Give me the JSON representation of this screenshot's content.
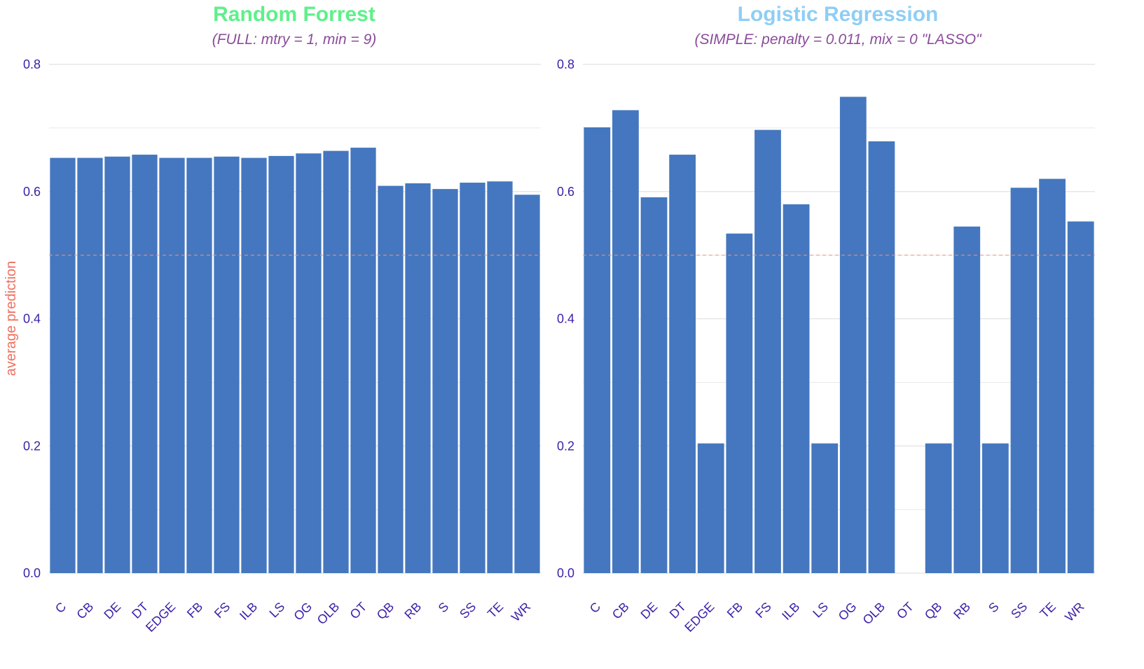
{
  "colors": {
    "bar": "#4477bf",
    "grid": "#e2e2e2",
    "tick": "#3c1fa8",
    "ylabel": "#f06e5e",
    "refline": "#f08f86",
    "subtitle": "#8b4c9a"
  },
  "ylabel": "average prediction",
  "chart_data": [
    {
      "type": "bar",
      "title": "Random Forrest",
      "title_color": "#5ef08a",
      "subtitle": "(FULL: mtry = 1, min = 9)",
      "categories": [
        "C",
        "CB",
        "DE",
        "DT",
        "EDGE",
        "FB",
        "FS",
        "ILB",
        "LS",
        "OG",
        "OLB",
        "OT",
        "QB",
        "RB",
        "S",
        "SS",
        "TE",
        "WR"
      ],
      "values": [
        0.653,
        0.653,
        0.655,
        0.658,
        0.653,
        0.653,
        0.655,
        0.653,
        0.656,
        0.66,
        0.664,
        0.669,
        0.609,
        0.613,
        0.604,
        0.614,
        0.616,
        0.595
      ],
      "ylim": [
        0,
        0.8
      ],
      "yticks": [
        "0.0",
        "0.2",
        "0.4",
        "0.6",
        "0.8"
      ],
      "ytick_values": [
        0,
        0.2,
        0.4,
        0.6,
        0.8
      ],
      "reference_line": 0.5,
      "ylabel": "average prediction",
      "grid": true
    },
    {
      "type": "bar",
      "title": "Logistic Regression",
      "title_color": "#8fcef5",
      "subtitle": "(SIMPLE: penalty = 0.011, mix = 0 \"LASSO\"",
      "categories": [
        "C",
        "CB",
        "DE",
        "DT",
        "EDGE",
        "FB",
        "FS",
        "ILB",
        "LS",
        "OG",
        "OLB",
        "OT",
        "QB",
        "RB",
        "S",
        "SS",
        "TE",
        "WR"
      ],
      "values": [
        0.701,
        0.728,
        0.591,
        0.658,
        0.204,
        0.534,
        0.697,
        0.58,
        0.204,
        0.749,
        0.679,
        0,
        0.204,
        0.545,
        0.204,
        0.606,
        0.62,
        0.553
      ],
      "ylim": [
        0,
        0.8
      ],
      "yticks": [
        "0.0",
        "0.2",
        "0.4",
        "0.6",
        "0.8"
      ],
      "ytick_values": [
        0,
        0.2,
        0.4,
        0.6,
        0.8
      ],
      "reference_line": 0.5,
      "grid": true
    }
  ]
}
